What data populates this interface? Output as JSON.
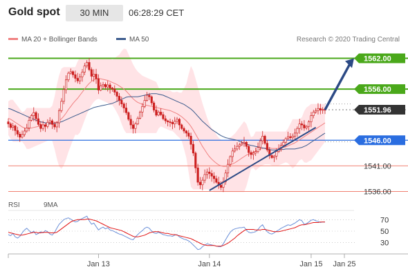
{
  "header": {
    "title": "Gold spot",
    "timeframe": "30 MIN",
    "time": "06:28:29 CET"
  },
  "legend": {
    "ma20_label": "MA 20 + Bollinger Bands",
    "ma50_label": "MA 50",
    "credit": "Research © 2020 Trading Central"
  },
  "rsi_legend": {
    "rsi_label": "RSI",
    "ma9_label": "9MA"
  },
  "colors": {
    "ma20": "#f08080",
    "bollinger_fill": "#ffe3e6",
    "ma50": "#3a5a8c",
    "candle": "#cc1f1f",
    "green_level": "#4aa81a",
    "red_level": "#f08070",
    "pivot": "#2a6de0",
    "current": "#333333",
    "trend": "#2c4a85",
    "rsi": "#6a8fd8",
    "ma9": "#e01010"
  },
  "chart_data": {
    "type": "candlestick",
    "instrument": "Gold spot",
    "interval": "30 MIN",
    "ylim": [
      1533.5,
      1564.5
    ],
    "x_ticks": [
      "Jan 13",
      "Jan 14",
      "Jan 15",
      "Jan 25"
    ],
    "levels": [
      {
        "value": 1562.0,
        "label": "1562.00",
        "kind": "resistance"
      },
      {
        "value": 1556.0,
        "label": "1556.00",
        "kind": "resistance"
      },
      {
        "value": 1551.96,
        "label": "1551.96",
        "kind": "current"
      },
      {
        "value": 1546.0,
        "label": "1546.00",
        "kind": "pivot"
      },
      {
        "value": 1541.0,
        "label": "1541.00",
        "kind": "support"
      },
      {
        "value": 1536.0,
        "label": "1536.00",
        "kind": "support"
      }
    ],
    "close": [
      1549.2,
      1548.5,
      1548.8,
      1547.9,
      1547.2,
      1546.6,
      1547.1,
      1547.8,
      1548.4,
      1549.9,
      1550.8,
      1551.4,
      1550.2,
      1549.1,
      1548.3,
      1549.0,
      1548.7,
      1549.5,
      1549.8,
      1549.1,
      1548.6,
      1549.4,
      1551.8,
      1553.6,
      1555.9,
      1557.8,
      1559.1,
      1559.4,
      1558.8,
      1558.1,
      1557.6,
      1558.4,
      1559.3,
      1560.5,
      1561.2,
      1559.8,
      1558.5,
      1558.9,
      1558.0,
      1555.8,
      1556.6,
      1556.9,
      1556.4,
      1556.8,
      1556.2,
      1556.0,
      1555.4,
      1554.6,
      1553.8,
      1553.1,
      1552.3,
      1551.4,
      1550.1,
      1549.0,
      1548.3,
      1549.2,
      1550.3,
      1551.5,
      1552.6,
      1553.8,
      1554.8,
      1554.5,
      1553.3,
      1551.9,
      1550.9,
      1551.5,
      1551.0,
      1550.2,
      1549.8,
      1549.6,
      1549.5,
      1549.2,
      1549.7,
      1550.1,
      1549.0,
      1548.3,
      1547.8,
      1547.4,
      1546.8,
      1545.2,
      1543.5,
      1540.6,
      1537.8,
      1537.3,
      1538.2,
      1539.3,
      1539.8,
      1539.5,
      1539.0,
      1538.5,
      1537.8,
      1537.2,
      1536.8,
      1537.9,
      1539.6,
      1541.3,
      1542.8,
      1543.9,
      1544.3,
      1544.8,
      1545.1,
      1545.4,
      1545.6,
      1544.8,
      1543.6,
      1543.2,
      1543.5,
      1543.8,
      1544.6,
      1545.9,
      1546.8,
      1545.4,
      1544.1,
      1543.0,
      1542.6,
      1542.9,
      1543.8,
      1544.2,
      1545.0,
      1545.6,
      1546.3,
      1546.7,
      1546.5,
      1546.8,
      1547.4,
      1548.3,
      1549.2,
      1549.0,
      1548.4,
      1548.7,
      1549.6,
      1550.8,
      1551.5,
      1551.8,
      1552.2,
      1551.9,
      1552.0,
      1551.96
    ],
    "ma20": [
      1550.3,
      1550.1,
      1549.8,
      1549.5,
      1549.2,
      1548.9,
      1548.6,
      1548.4,
      1548.3,
      1548.3,
      1548.4,
      1548.5,
      1548.6,
      1548.7,
      1548.8,
      1548.9,
      1549.0,
      1549.1,
      1549.2,
      1549.3,
      1549.4,
      1549.6,
      1549.8,
      1550.2,
      1550.7,
      1551.3,
      1552.0,
      1552.6,
      1553.2,
      1553.7,
      1554.2,
      1554.8,
      1555.4,
      1556.0,
      1556.6,
      1557.1,
      1557.5,
      1557.8,
      1558.0,
      1558.1,
      1558.0,
      1557.9,
      1557.8,
      1557.7,
      1557.5,
      1557.3,
      1557.1,
      1556.9,
      1556.6,
      1556.3,
      1556.0,
      1555.6,
      1555.1,
      1554.6,
      1554.1,
      1553.7,
      1553.4,
      1553.2,
      1553.0,
      1552.9,
      1552.8,
      1552.7,
      1552.6,
      1552.5,
      1552.4,
      1552.3,
      1552.2,
      1552.1,
      1552.0,
      1551.9,
      1551.8,
      1551.6,
      1551.4,
      1551.2,
      1550.9,
      1550.6,
      1550.2,
      1549.8,
      1549.3,
      1548.7,
      1548.0,
      1547.2,
      1546.4,
      1545.6,
      1544.8,
      1544.1,
      1543.4,
      1542.8,
      1542.3,
      1541.9,
      1541.5,
      1541.2,
      1541.0,
      1540.9,
      1540.9,
      1541.0,
      1541.2,
      1541.4,
      1541.6,
      1541.9,
      1542.2,
      1542.5,
      1542.8,
      1543.1,
      1543.3,
      1543.5,
      1543.7,
      1543.9,
      1544.1,
      1544.3,
      1544.4,
      1544.5,
      1544.5,
      1544.5,
      1544.4,
      1544.4,
      1544.4,
      1544.4,
      1544.5,
      1544.6,
      1544.7,
      1544.9,
      1545.1,
      1545.3,
      1545.5,
      1545.8,
      1546.1,
      1546.4,
      1546.7,
      1547.0,
      1547.3,
      1547.6,
      1547.9,
      1548.2,
      1548.5,
      1548.8,
      1549.1,
      1549.4
    ],
    "ma50": [
      1552.2,
      1552.1,
      1551.9,
      1551.7,
      1551.5,
      1551.3,
      1551.1,
      1550.9,
      1550.7,
      1550.5,
      1550.3,
      1550.1,
      1549.9,
      1549.8,
      1549.6,
      1549.5,
      1549.4,
      1549.3,
      1549.3,
      1549.3,
      1549.3,
      1549.4,
      1549.5,
      1549.6,
      1549.8,
      1550.0,
      1550.2,
      1550.4,
      1550.6,
      1550.8,
      1551.0,
      1551.2,
      1551.4,
      1551.6,
      1551.8,
      1552.0,
      1552.2,
      1552.4,
      1552.5,
      1552.6,
      1552.7,
      1552.8,
      1552.9,
      1553.0,
      1553.1,
      1553.2,
      1553.4,
      1553.6,
      1553.8,
      1554.0,
      1554.2,
      1554.4,
      1554.5,
      1554.5,
      1554.5,
      1554.5,
      1554.5,
      1554.6,
      1554.7,
      1554.8,
      1554.9,
      1555.0,
      1555.1,
      1555.1,
      1555.1,
      1555.0,
      1554.9,
      1554.8,
      1554.6,
      1554.4,
      1554.2,
      1554.0,
      1553.8,
      1553.6,
      1553.4,
      1553.2,
      1553.0,
      1552.7,
      1552.4,
      1552.1,
      1551.7,
      1551.2,
      1550.7,
      1550.2,
      1549.7,
      1549.3,
      1548.9,
      1548.5,
      1548.1,
      1547.8,
      1547.5,
      1547.2,
      1546.9,
      1546.7,
      1546.5,
      1546.4,
      1546.3,
      1546.2,
      1546.1,
      1546.0,
      1545.8,
      1545.6,
      1545.4,
      1545.2,
      1545.1,
      1545.0,
      1544.9,
      1544.8,
      1544.7,
      1544.6,
      1544.5,
      1544.4,
      1544.3,
      1544.2,
      1544.1,
      1544.1,
      1544.1,
      1544.1,
      1544.2,
      1544.2,
      1544.3,
      1544.3,
      1544.3,
      1544.3,
      1544.3,
      1544.4,
      1544.5,
      1544.6,
      1544.8,
      1545.0,
      1545.3,
      1545.6,
      1545.9,
      1546.2,
      1546.5,
      1546.8,
      1547.1,
      1547.4
    ],
    "rsi": [
      44,
      42,
      46,
      40,
      38,
      41,
      47,
      52,
      55,
      51,
      47,
      50,
      44,
      46,
      49,
      47,
      51,
      49,
      45,
      43,
      48,
      55,
      62,
      66,
      70,
      72,
      73,
      71,
      68,
      66,
      67,
      70,
      72,
      74,
      76,
      68,
      62,
      64,
      58,
      52,
      55,
      57,
      54,
      56,
      52,
      51,
      49,
      47,
      45,
      44,
      42,
      40,
      38,
      36,
      35,
      40,
      44,
      48,
      51,
      55,
      57,
      55,
      50,
      47,
      46,
      48,
      46,
      44,
      43,
      42,
      42,
      41,
      43,
      44,
      40,
      38,
      36,
      35,
      33,
      30,
      26,
      22,
      18,
      19,
      23,
      26,
      28,
      27,
      26,
      25,
      24,
      23,
      23,
      28,
      35,
      42,
      48,
      52,
      54,
      55,
      56,
      56,
      57,
      52,
      48,
      47,
      48,
      49,
      53,
      58,
      61,
      54,
      49,
      46,
      45,
      47,
      50,
      52,
      55,
      57,
      59,
      61,
      60,
      62,
      64,
      67,
      70,
      68,
      62,
      63,
      66,
      69,
      70,
      68,
      67,
      65,
      66,
      66
    ],
    "ma9": [
      48,
      47,
      46,
      45,
      44,
      43,
      43,
      44,
      45,
      46,
      47,
      48,
      48,
      47,
      47,
      48,
      48,
      48,
      47,
      47,
      47,
      48,
      51,
      54,
      57,
      60,
      63,
      66,
      68,
      69,
      70,
      70,
      70,
      70,
      71,
      71,
      70,
      69,
      68,
      66,
      64,
      62,
      60,
      58,
      56,
      55,
      54,
      53,
      52,
      51,
      49,
      47,
      45,
      43,
      41,
      40,
      40,
      41,
      42,
      43,
      45,
      47,
      48,
      49,
      49,
      49,
      48,
      47,
      46,
      46,
      45,
      44,
      44,
      43,
      42,
      41,
      40,
      39,
      38,
      37,
      35,
      33,
      31,
      29,
      27,
      26,
      25,
      25,
      25,
      25,
      24,
      24,
      24,
      25,
      27,
      29,
      32,
      35,
      38,
      42,
      45,
      48,
      51,
      53,
      53,
      53,
      53,
      52,
      52,
      52,
      53,
      53,
      52,
      51,
      50,
      49,
      49,
      49,
      50,
      51,
      52,
      53,
      54,
      55,
      56,
      58,
      60,
      61,
      61,
      62,
      63,
      64,
      65,
      65,
      65,
      66,
      66,
      66
    ],
    "rsi_ticks": [
      30,
      50,
      70
    ],
    "rsi_ylim": [
      0,
      100
    ]
  }
}
